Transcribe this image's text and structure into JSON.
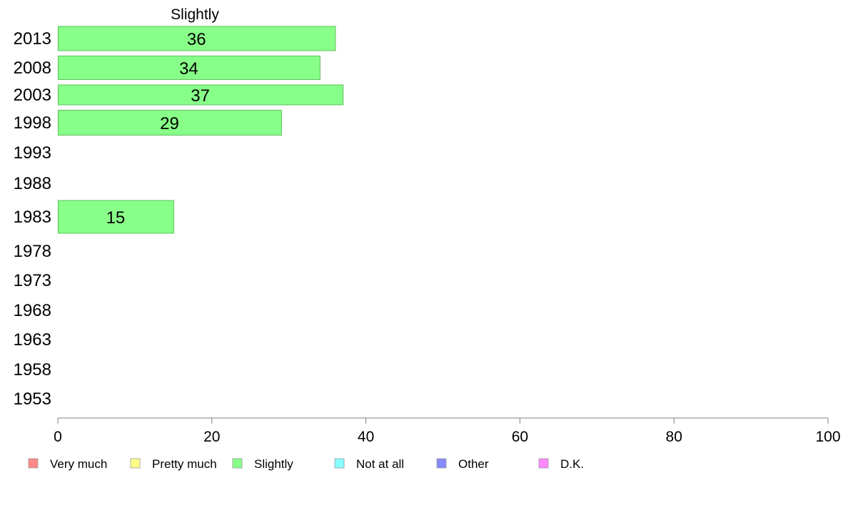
{
  "chart_data": {
    "type": "bar",
    "orientation": "horizontal",
    "title": "Slightly",
    "categories": [
      "2013",
      "2008",
      "2003",
      "1998",
      "1993",
      "1988",
      "1983",
      "1978",
      "1973",
      "1968",
      "1963",
      "1958",
      "1953"
    ],
    "series": [
      {
        "name": "Slightly",
        "color": "#88ff88",
        "values": [
          36,
          34,
          37,
          29,
          null,
          null,
          15,
          null,
          null,
          null,
          null,
          null,
          null
        ]
      }
    ],
    "xlim": [
      0,
      100
    ],
    "xticks": [
      0,
      20,
      40,
      60,
      80,
      100
    ],
    "xlabel": "",
    "ylabel": "",
    "grid": false,
    "legend": {
      "placement": "bottom",
      "entries": [
        {
          "label": "Very much",
          "color": "#ff8888"
        },
        {
          "label": "Pretty much",
          "color": "#ffff88"
        },
        {
          "label": "Slightly",
          "color": "#88ff88"
        },
        {
          "label": "Not at all",
          "color": "#88ffff"
        },
        {
          "label": "Other",
          "color": "#8888ff"
        },
        {
          "label": "D.K.",
          "color": "#ff88ff"
        }
      ]
    }
  }
}
